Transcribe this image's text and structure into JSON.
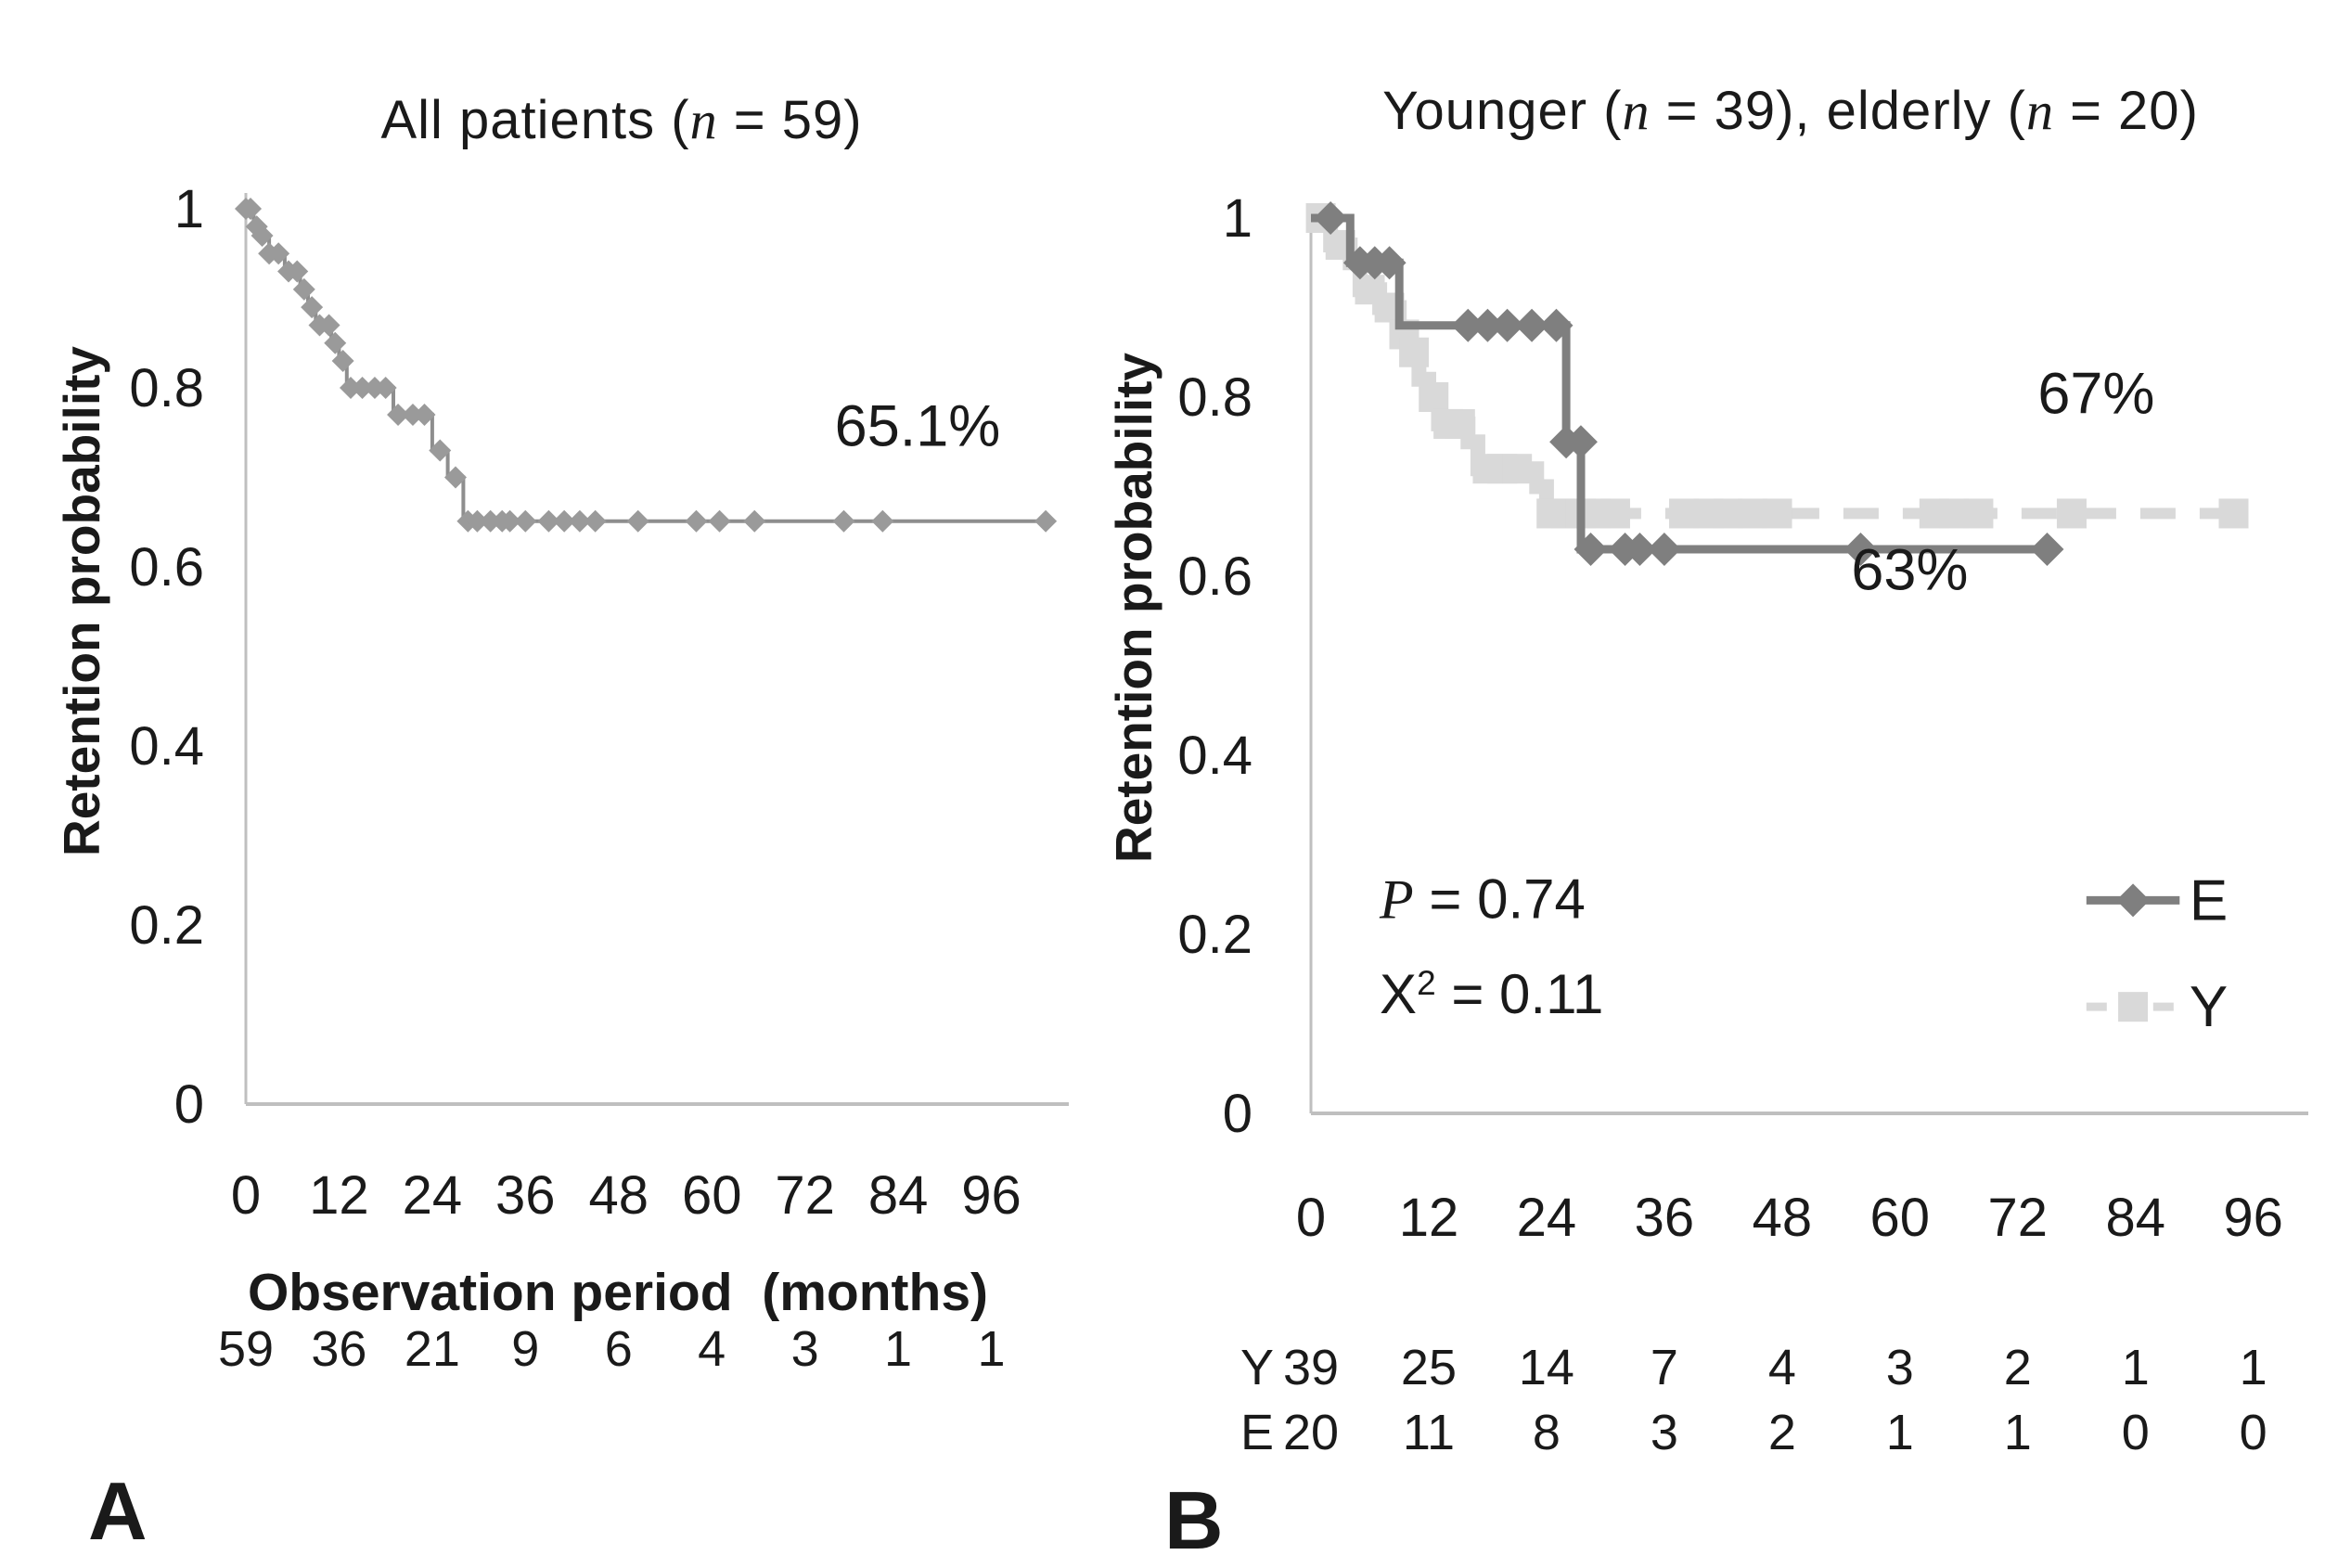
{
  "figure": {
    "background": "#ffffff",
    "text_color": "#1a1a1a",
    "axis_color": "#bfbfbf",
    "colors": {
      "all_patients": "#8e8e8e",
      "all_patients_marker": "#9a9a9a",
      "elderly": "#7f7f7f",
      "younger": "#d9d9d9"
    }
  },
  "chart_data": [
    {
      "type": "line",
      "subtype": "kaplan-meier-step",
      "panel_label": "A",
      "title": "All patients (n = 59)",
      "title_segments": [
        {
          "t": "All patients ("
        },
        {
          "t": "n",
          "i": true
        },
        {
          "t": " = 59)"
        }
      ],
      "ylabel": "Retention probability",
      "xlabel": "Observation period  (months)",
      "ylim": [
        0,
        1
      ],
      "xlim": [
        0,
        103
      ],
      "grid": false,
      "ytick_labels": [
        "1",
        "0.8",
        "0.6",
        "0.4",
        "0.2",
        "0"
      ],
      "ytick_values": [
        1,
        0.8,
        0.6,
        0.4,
        0.2,
        0
      ],
      "xticks": [
        0,
        12,
        24,
        36,
        48,
        60,
        72,
        84,
        96
      ],
      "series": [
        {
          "name": "All patients",
          "color": "#8e8e8e",
          "width": 4,
          "marker": "diamond",
          "marker_color": "#9a9a9a",
          "marker_size": 12,
          "steps": [
            [
              0,
              1.0
            ],
            [
              1,
              1.0
            ],
            [
              1,
              0.98
            ],
            [
              2,
              0.98
            ],
            [
              2,
              0.97
            ],
            [
              3,
              0.97
            ],
            [
              3,
              0.95
            ],
            [
              5,
              0.95
            ],
            [
              5,
              0.93
            ],
            [
              7,
              0.93
            ],
            [
              7,
              0.91
            ],
            [
              8,
              0.91
            ],
            [
              8,
              0.89
            ],
            [
              9,
              0.89
            ],
            [
              9,
              0.87
            ],
            [
              11,
              0.87
            ],
            [
              11,
              0.85
            ],
            [
              12,
              0.85
            ],
            [
              12,
              0.83
            ],
            [
              13,
              0.83
            ],
            [
              13,
              0.8
            ],
            [
              19,
              0.8
            ],
            [
              19,
              0.77
            ],
            [
              24,
              0.77
            ],
            [
              24,
              0.73
            ],
            [
              26,
              0.73
            ],
            [
              26,
              0.7
            ],
            [
              28,
              0.7
            ],
            [
              28,
              0.651
            ],
            [
              103,
              0.651
            ]
          ],
          "censor_marks": [
            [
              0,
              1.0
            ],
            [
              0.6,
              1.0
            ],
            [
              1.4,
              0.98
            ],
            [
              2.1,
              0.97
            ],
            [
              3,
              0.95
            ],
            [
              4.2,
              0.95
            ],
            [
              5.5,
              0.93
            ],
            [
              6.6,
              0.93
            ],
            [
              7.5,
              0.91
            ],
            [
              8.5,
              0.89
            ],
            [
              9.5,
              0.87
            ],
            [
              10.7,
              0.87
            ],
            [
              11.5,
              0.85
            ],
            [
              12.5,
              0.83
            ],
            [
              13.5,
              0.8
            ],
            [
              15,
              0.8
            ],
            [
              16.6,
              0.8
            ],
            [
              18,
              0.8
            ],
            [
              19.6,
              0.77
            ],
            [
              21.5,
              0.77
            ],
            [
              23,
              0.77
            ],
            [
              25,
              0.73
            ],
            [
              27,
              0.7
            ],
            [
              28.6,
              0.651
            ],
            [
              29.8,
              0.651
            ],
            [
              31.5,
              0.651
            ],
            [
              33,
              0.651
            ],
            [
              34,
              0.651
            ],
            [
              36,
              0.651
            ],
            [
              39,
              0.651
            ],
            [
              41,
              0.651
            ],
            [
              43,
              0.651
            ],
            [
              45,
              0.651
            ],
            [
              50.5,
              0.651
            ],
            [
              58,
              0.651
            ],
            [
              61,
              0.651
            ],
            [
              65.5,
              0.651
            ],
            [
              77,
              0.651
            ],
            [
              82,
              0.651
            ],
            [
              103,
              0.651
            ]
          ]
        }
      ],
      "annotations": [
        {
          "segments": [
            {
              "t": "65.1%"
            }
          ],
          "x": 86.5,
          "y": 0.735,
          "anchor": "middle",
          "size": 63
        }
      ],
      "risk_rows": [
        {
          "prefix": "",
          "values": [
            "59",
            "36",
            "21",
            "9",
            "6",
            "4",
            "3",
            "1",
            "1"
          ]
        }
      ]
    },
    {
      "type": "line",
      "subtype": "kaplan-meier-step",
      "panel_label": "B",
      "title": "Younger (n = 39), elderly (n = 20)",
      "title_segments": [
        {
          "t": "Younger ("
        },
        {
          "t": "n",
          "i": true
        },
        {
          "t": " = 39), elderly ("
        },
        {
          "t": "n",
          "i": true
        },
        {
          "t": " = 20)"
        }
      ],
      "ylabel": "Retention probability",
      "xlabel": "",
      "ylim": [
        0,
        1
      ],
      "xlim": [
        0,
        96
      ],
      "grid": false,
      "ytick_labels": [
        "1",
        "0.8",
        "0.6",
        "0.4",
        "0.2",
        "0"
      ],
      "ytick_values": [
        1,
        0.8,
        0.6,
        0.4,
        0.2,
        0
      ],
      "xticks": [
        0,
        12,
        24,
        36,
        48,
        60,
        72,
        84,
        96
      ],
      "series": [
        {
          "name": "Y younger decline",
          "legend_key": "Y",
          "color": "#d9d9d9",
          "width": 16,
          "marker": "square",
          "marker_color": "#d9d9d9",
          "marker_size": 16,
          "steps": [
            [
              0,
              1.0
            ],
            [
              2,
              1.0
            ],
            [
              2,
              0.97
            ],
            [
              4,
              0.97
            ],
            [
              4,
              0.95
            ],
            [
              5,
              0.95
            ],
            [
              5,
              0.92
            ],
            [
              7,
              0.92
            ],
            [
              7,
              0.9
            ],
            [
              9,
              0.9
            ],
            [
              9,
              0.87
            ],
            [
              10,
              0.87
            ],
            [
              10,
              0.85
            ],
            [
              11,
              0.85
            ],
            [
              11,
              0.82
            ],
            [
              12,
              0.82
            ],
            [
              12,
              0.8
            ],
            [
              13,
              0.8
            ],
            [
              13,
              0.77
            ],
            [
              16,
              0.77
            ],
            [
              16,
              0.75
            ],
            [
              17,
              0.75
            ],
            [
              17,
              0.72
            ],
            [
              23,
              0.72
            ],
            [
              23,
              0.7
            ],
            [
              24,
              0.7
            ],
            [
              24,
              0.67
            ]
          ],
          "censor_marks": [
            [
              1,
              1.0
            ],
            [
              3,
              0.97
            ],
            [
              6,
              0.92
            ],
            [
              8,
              0.9
            ],
            [
              9.5,
              0.87
            ],
            [
              10.5,
              0.85
            ],
            [
              12.5,
              0.8
            ],
            [
              14,
              0.77
            ],
            [
              15.2,
              0.77
            ],
            [
              18,
              0.72
            ],
            [
              19.5,
              0.72
            ],
            [
              21,
              0.72
            ]
          ]
        },
        {
          "name": "Y younger plateau",
          "legend_key": "Y",
          "color": "#d9d9d9",
          "width": 12,
          "dash": "38 26",
          "marker": "square",
          "marker_color": "#d9d9d9",
          "marker_size": 16,
          "steps": [
            [
              24,
              0.67
            ],
            [
              94.5,
              0.67
            ]
          ],
          "censor_marks": [
            [
              24.5,
              0.67
            ],
            [
              26,
              0.67
            ],
            [
              27.5,
              0.67
            ],
            [
              29,
              0.67
            ],
            [
              31,
              0.67
            ],
            [
              38,
              0.67
            ],
            [
              40.5,
              0.67
            ],
            [
              42.5,
              0.67
            ],
            [
              45,
              0.67
            ],
            [
              47.5,
              0.67
            ],
            [
              63.5,
              0.67
            ],
            [
              65.5,
              0.67
            ],
            [
              68,
              0.67
            ],
            [
              77.5,
              0.67
            ],
            [
              94,
              0.67
            ]
          ]
        },
        {
          "name": "E elderly",
          "legend_key": "E",
          "color": "#7f7f7f",
          "width": 9,
          "marker": "diamond",
          "marker_color": "#7f7f7f",
          "marker_size": 18,
          "steps": [
            [
              0,
              1.0
            ],
            [
              4,
              1.0
            ],
            [
              4,
              0.95
            ],
            [
              9,
              0.95
            ],
            [
              9,
              0.88
            ],
            [
              26,
              0.88
            ],
            [
              26,
              0.75
            ],
            [
              27.5,
              0.75
            ],
            [
              27.5,
              0.63
            ],
            [
              75.5,
              0.63
            ]
          ],
          "censor_marks": [
            [
              2,
              1.0
            ],
            [
              5,
              0.95
            ],
            [
              6.5,
              0.95
            ],
            [
              8,
              0.95
            ],
            [
              16,
              0.88
            ],
            [
              18,
              0.88
            ],
            [
              20,
              0.88
            ],
            [
              22.5,
              0.88
            ],
            [
              25,
              0.88
            ],
            [
              26,
              0.75
            ],
            [
              27.5,
              0.75
            ],
            [
              28.5,
              0.63
            ],
            [
              32,
              0.63
            ],
            [
              33.5,
              0.63
            ],
            [
              36,
              0.63
            ],
            [
              56,
              0.63
            ],
            [
              75,
              0.63
            ]
          ]
        }
      ],
      "annotations": [
        {
          "segments": [
            {
              "t": "67%"
            }
          ],
          "x": 80,
          "y": 0.782,
          "anchor": "middle",
          "size": 63
        },
        {
          "segments": [
            {
              "t": "63%"
            }
          ],
          "x": 61,
          "y": 0.585,
          "anchor": "middle",
          "size": 63
        },
        {
          "segments": [
            {
              "t": "P",
              "i": true
            },
            {
              "t": " = 0.74"
            }
          ],
          "x": 7,
          "y": 0.218,
          "anchor": "start",
          "size": 60
        },
        {
          "segments": [
            {
              "t": "X"
            },
            {
              "t": "2",
              "sup": true
            },
            {
              "t": " = 0.11"
            }
          ],
          "x": 7,
          "y": 0.112,
          "anchor": "start",
          "size": 60
        }
      ],
      "legend": {
        "position": "right-middle",
        "entries": [
          {
            "label": "E",
            "color": "#7f7f7f",
            "marker": "diamond",
            "marker_size": 18,
            "width": 9,
            "x1": 79,
            "x2": 88.5,
            "label_x": 89.5,
            "y": 0.238
          },
          {
            "label": "Y",
            "color": "#d9d9d9",
            "marker": "square",
            "marker_size": 16,
            "width": 9,
            "dash": "22 14",
            "x1": 79,
            "x2": 88.5,
            "label_x": 89.5,
            "y": 0.119
          }
        ]
      },
      "risk_rows": [
        {
          "prefix": "Y",
          "values": [
            "39",
            "25",
            "14",
            "7",
            "4",
            "3",
            "2",
            "1",
            "1"
          ]
        },
        {
          "prefix": "E",
          "values": [
            "20",
            "11",
            "8",
            "3",
            "2",
            "1",
            "1",
            "0",
            "0"
          ]
        }
      ]
    }
  ]
}
